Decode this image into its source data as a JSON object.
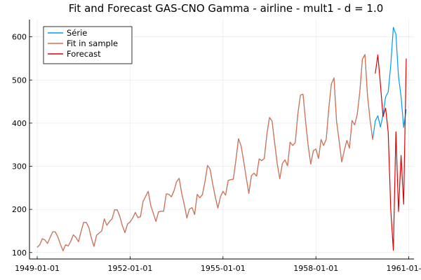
{
  "chart_data": {
    "type": "line",
    "title": "Fit and Forecast GAS-CNO Gamma - airline - mult1 - d = 1.0",
    "xlabel": "",
    "ylabel": "",
    "x_start": "1949-01-01",
    "x_frequency": "monthly",
    "xlim": [
      "1948-10-01",
      "1961-03-01"
    ],
    "ylim": [
      85,
      640
    ],
    "x_ticks": [
      {
        "date": "1949-01-01",
        "label": "1949-01-01"
      },
      {
        "date": "1952-01-01",
        "label": "1952-01-01"
      },
      {
        "date": "1955-01-01",
        "label": "1955-01-01"
      },
      {
        "date": "1958-01-01",
        "label": "1958-01-01"
      },
      {
        "date": "1961-01-01",
        "label": "1961-01-01"
      }
    ],
    "y_ticks": [
      100,
      200,
      300,
      400,
      500,
      600
    ],
    "grid": true,
    "legend_position": "top-left",
    "series": [
      {
        "name": "Série",
        "color": "#009AFA",
        "start": "1949-01-01",
        "values": [
          112,
          118,
          132,
          129,
          121,
          135,
          148,
          148,
          136,
          119,
          104,
          118,
          115,
          126,
          141,
          135,
          125,
          149,
          170,
          170,
          158,
          133,
          114,
          140,
          145,
          150,
          178,
          163,
          172,
          178,
          199,
          199,
          184,
          162,
          146,
          166,
          171,
          180,
          193,
          181,
          183,
          218,
          230,
          242,
          209,
          191,
          172,
          194,
          196,
          196,
          236,
          235,
          229,
          243,
          264,
          272,
          237,
          211,
          180,
          201,
          204,
          188,
          235,
          227,
          234,
          264,
          302,
          293,
          259,
          229,
          203,
          229,
          242,
          233,
          267,
          269,
          270,
          315,
          364,
          347,
          312,
          274,
          237,
          278,
          284,
          277,
          317,
          313,
          318,
          374,
          413,
          405,
          355,
          306,
          271,
          306,
          315,
          301,
          356,
          348,
          355,
          422,
          465,
          467,
          404,
          347,
          305,
          336,
          340,
          318,
          362,
          348,
          363,
          435,
          491,
          505,
          404,
          359,
          310,
          337,
          360,
          342,
          406,
          396,
          420,
          472,
          548,
          559,
          463,
          407,
          362,
          405,
          417,
          391,
          419,
          461,
          472,
          535,
          622,
          606,
          508,
          461,
          390,
          432
        ]
      },
      {
        "name": "Fit in sample",
        "color": "#E26F46",
        "start": "1949-01-01",
        "values": [
          112,
          118,
          132,
          129,
          121,
          135,
          148,
          148,
          136,
          119,
          104,
          118,
          115,
          126,
          141,
          135,
          125,
          149,
          170,
          170,
          158,
          133,
          114,
          140,
          145,
          150,
          178,
          163,
          172,
          178,
          199,
          199,
          184,
          162,
          146,
          166,
          171,
          180,
          193,
          181,
          183,
          218,
          230,
          242,
          209,
          191,
          172,
          194,
          196,
          196,
          236,
          235,
          229,
          243,
          264,
          272,
          237,
          211,
          180,
          201,
          204,
          188,
          235,
          227,
          234,
          264,
          302,
          293,
          259,
          229,
          203,
          229,
          242,
          233,
          267,
          269,
          270,
          315,
          364,
          347,
          312,
          274,
          237,
          278,
          284,
          277,
          317,
          313,
          318,
          374,
          413,
          405,
          355,
          306,
          271,
          306,
          315,
          301,
          356,
          348,
          355,
          422,
          465,
          467,
          404,
          347,
          305,
          336,
          340,
          318,
          362,
          348,
          363,
          435,
          491,
          505,
          404,
          359,
          310,
          337,
          360,
          342,
          406,
          396,
          420,
          472,
          548,
          559,
          463,
          407,
          362
        ]
      },
      {
        "name": "Forecast",
        "color": "#E00000",
        "start": "1959-12-01",
        "values": [
          515,
          558,
          490,
          415,
          435,
          380,
          200,
          105,
          380,
          195,
          325,
          212,
          550
        ]
      }
    ]
  }
}
